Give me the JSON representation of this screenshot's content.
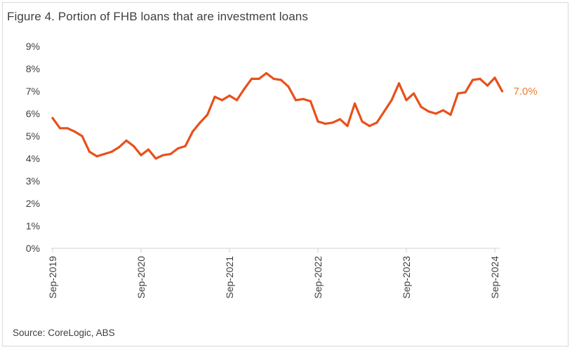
{
  "chart_data": {
    "type": "line",
    "title": "Figure 4. Portion of FHB loans that are investment loans",
    "source": "Source: CoreLogic, ABS",
    "xlabel": "",
    "ylabel": "",
    "ylim": [
      0,
      9
    ],
    "yticks": [
      "0%",
      "1%",
      "2%",
      "3%",
      "4%",
      "5%",
      "6%",
      "7%",
      "8%",
      "9%"
    ],
    "xticks": [
      "Sep-2019",
      "Sep-2020",
      "Sep-2021",
      "Sep-2022",
      "Sep-2023",
      "Sep-2024"
    ],
    "grid": false,
    "legend": "none",
    "series_color": "#e8501a",
    "end_label": "7.0%",
    "end_label_color": "#ee7d31",
    "series": [
      {
        "values": [
          5.8,
          5.35,
          5.35,
          5.2,
          5.0,
          4.3,
          4.1,
          4.2,
          4.3,
          4.5,
          4.8,
          4.55,
          4.15,
          4.4,
          4.0,
          4.15,
          4.2,
          4.45,
          4.55,
          5.2,
          5.6,
          5.95,
          6.75,
          6.6,
          6.8,
          6.6,
          7.1,
          7.55,
          7.55,
          7.8,
          7.55,
          7.5,
          7.2,
          6.6,
          6.65,
          6.55,
          5.65,
          5.55,
          5.6,
          5.75,
          5.45,
          6.45,
          5.65,
          5.45,
          5.6,
          6.1,
          6.6,
          7.35,
          6.6,
          6.9,
          6.3,
          6.1,
          6.0,
          6.15,
          5.95,
          6.9,
          6.95,
          7.5,
          7.55,
          7.25,
          7.6,
          7.0
        ]
      }
    ]
  }
}
